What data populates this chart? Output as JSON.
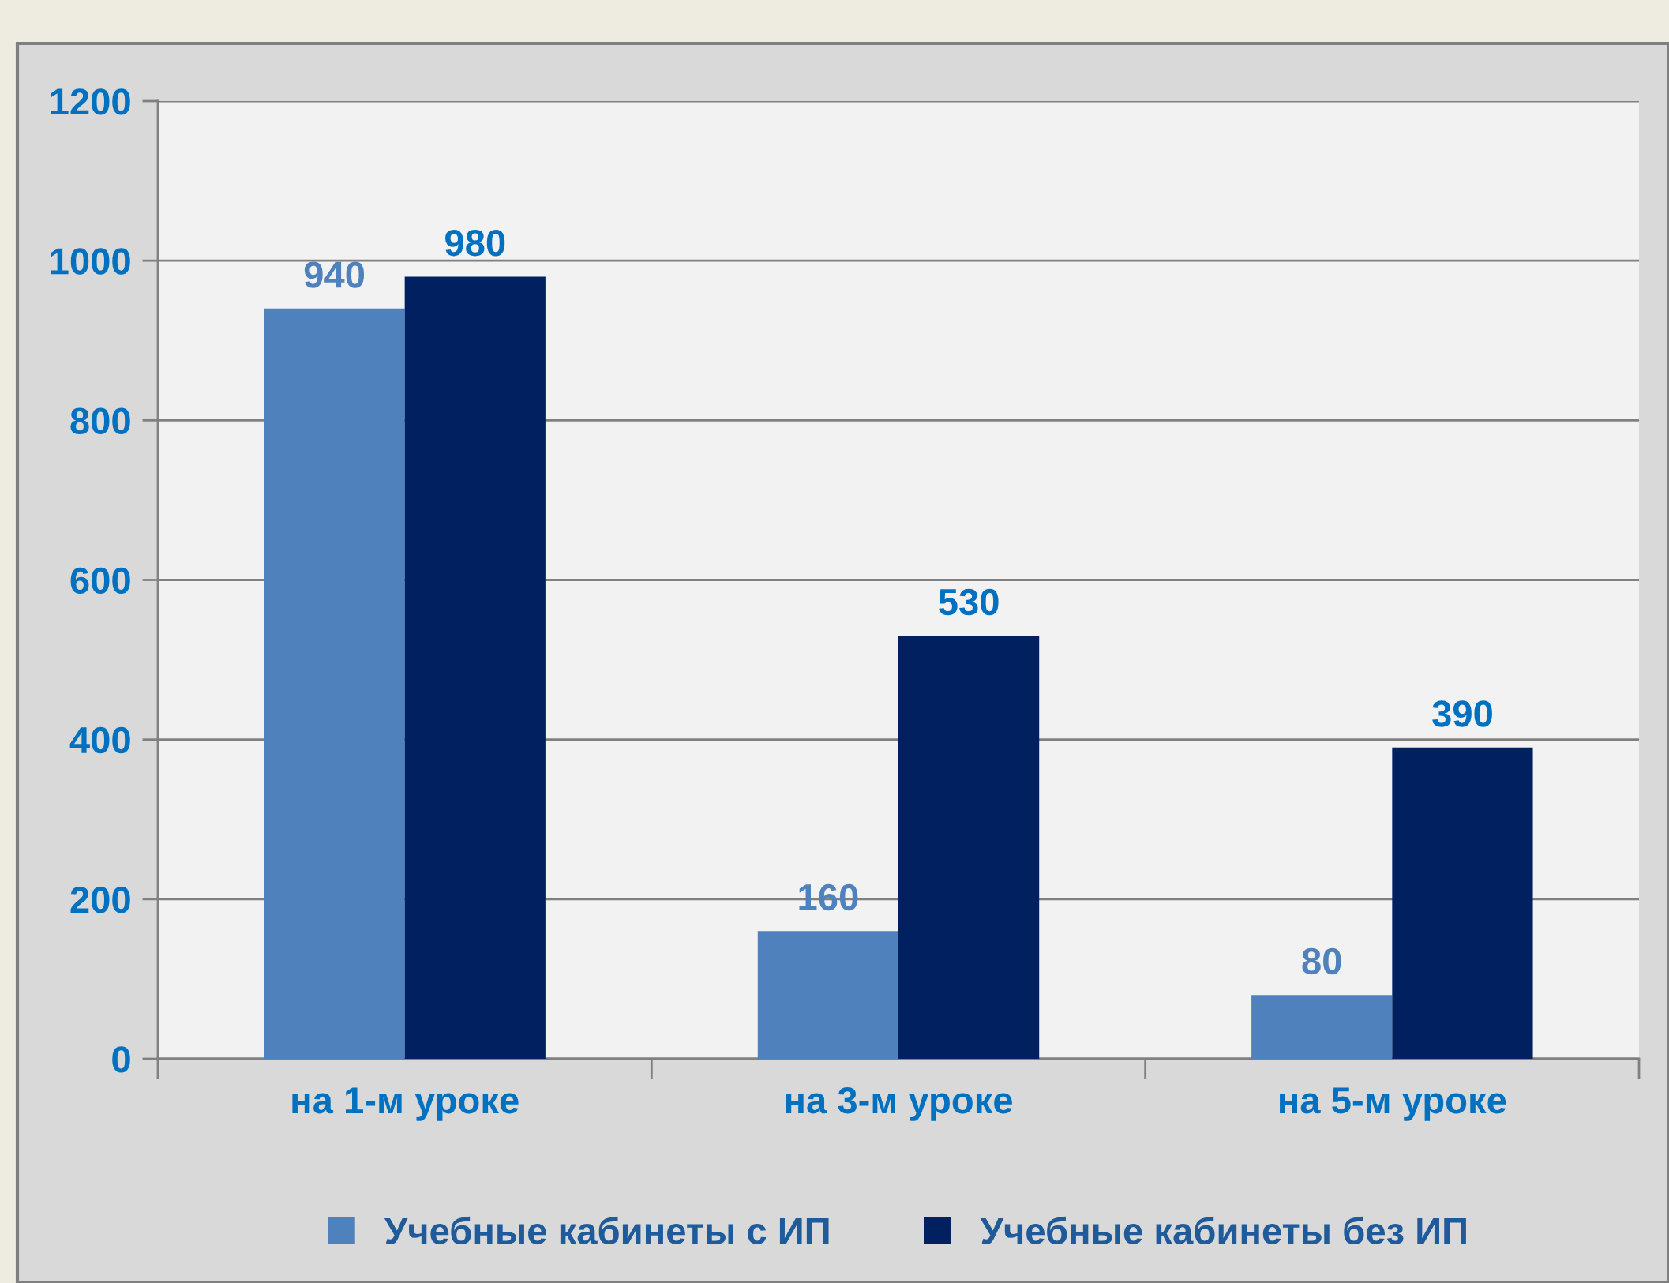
{
  "chart_data": {
    "type": "bar",
    "categories": [
      "на 1-м уроке",
      "на 3-м уроке",
      "на 5-м уроке"
    ],
    "series": [
      {
        "name": "Учебные кабинеты с ИП",
        "color": "#4f81bd",
        "values": [
          940,
          160,
          80
        ]
      },
      {
        "name": "Учебные кабинеты без ИП",
        "color": "#002060",
        "values": [
          980,
          530,
          390
        ]
      }
    ],
    "ylim": [
      0,
      1200
    ],
    "yticks": [
      0,
      200,
      400,
      600,
      800,
      1000,
      1200
    ],
    "grid": "y",
    "legend": "bottom",
    "data_labels": true
  }
}
